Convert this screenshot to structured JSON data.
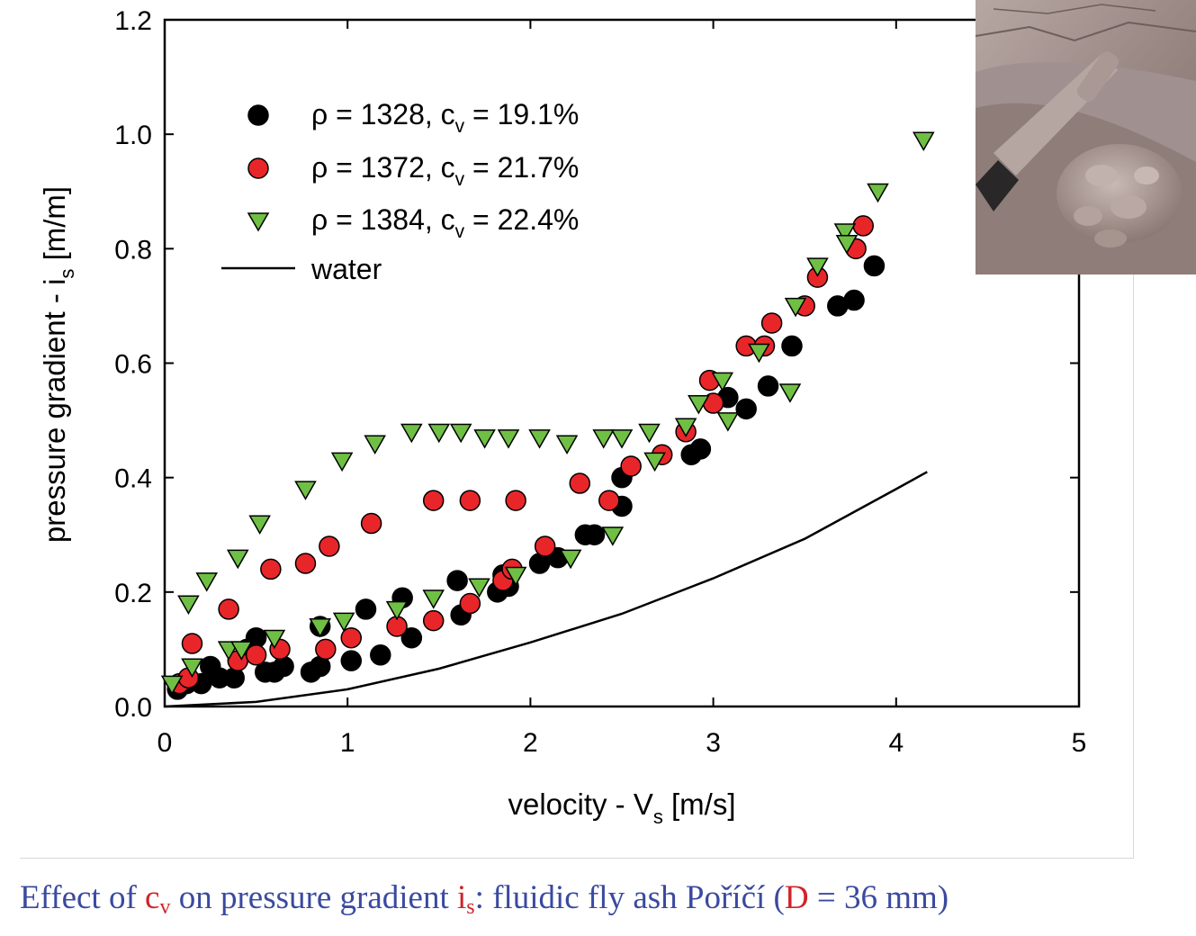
{
  "chart_data": {
    "type": "scatter",
    "xlabel_main": "velocity - V",
    "xlabel_sub": "s",
    "xlabel_unit": " [m/s]",
    "ylabel_main": "pressure gradient - i",
    "ylabel_sub": "s",
    "ylabel_unit": " [m/m]",
    "xlim": [
      0,
      5
    ],
    "ylim": [
      0,
      1.2
    ],
    "xticks": [
      "0",
      "1",
      "2",
      "3",
      "4",
      "5"
    ],
    "yticks": [
      "0.0",
      "0.2",
      "0.4",
      "0.6",
      "0.8",
      "1.0",
      "1.2"
    ],
    "legend_position": "top-left",
    "series": [
      {
        "name_prefix": "ρ = 1328, c",
        "name_sub": "v",
        "name_suffix": " = 19.1%",
        "marker": "circle",
        "color": "#000000",
        "x": [
          0.07,
          0.12,
          0.2,
          0.25,
          0.3,
          0.38,
          0.45,
          0.5,
          0.55,
          0.6,
          0.65,
          0.8,
          0.85,
          0.85,
          1.02,
          1.1,
          1.18,
          1.3,
          1.35,
          1.6,
          1.62,
          1.82,
          1.85,
          1.88,
          2.05,
          2.15,
          2.3,
          2.35,
          2.5,
          2.5,
          2.88,
          2.93,
          3.08,
          3.18,
          3.3,
          3.43,
          3.68,
          3.77,
          3.88
        ],
        "y": [
          0.03,
          0.04,
          0.04,
          0.07,
          0.05,
          0.05,
          0.1,
          0.12,
          0.06,
          0.06,
          0.07,
          0.06,
          0.07,
          0.14,
          0.08,
          0.17,
          0.09,
          0.19,
          0.12,
          0.22,
          0.16,
          0.2,
          0.23,
          0.21,
          0.25,
          0.26,
          0.3,
          0.3,
          0.35,
          0.4,
          0.44,
          0.45,
          0.54,
          0.52,
          0.56,
          0.63,
          0.7,
          0.71,
          0.77
        ]
      },
      {
        "name_prefix": "ρ = 1372, c",
        "name_sub": "v",
        "name_suffix": " = 21.7%",
        "marker": "circle",
        "color": "#e8262a",
        "x": [
          0.08,
          0.13,
          0.15,
          0.35,
          0.4,
          0.5,
          0.58,
          0.63,
          0.77,
          0.88,
          0.9,
          1.02,
          1.13,
          1.27,
          1.47,
          1.47,
          1.67,
          1.67,
          1.85,
          1.9,
          1.92,
          2.08,
          2.27,
          2.43,
          2.55,
          2.72,
          2.85,
          2.98,
          3.0,
          3.18,
          3.28,
          3.32,
          3.5,
          3.57,
          3.78,
          3.82
        ],
        "y": [
          0.04,
          0.05,
          0.11,
          0.17,
          0.08,
          0.09,
          0.24,
          0.1,
          0.25,
          0.1,
          0.28,
          0.12,
          0.32,
          0.14,
          0.15,
          0.36,
          0.18,
          0.36,
          0.22,
          0.24,
          0.36,
          0.28,
          0.39,
          0.36,
          0.42,
          0.44,
          0.48,
          0.57,
          0.53,
          0.63,
          0.63,
          0.67,
          0.7,
          0.75,
          0.8,
          0.84
        ]
      },
      {
        "name_prefix": "ρ = 1384, c",
        "name_sub": "v",
        "name_suffix": " = 22.4%",
        "marker": "triangle-down",
        "color": "#6fbf44",
        "x": [
          0.04,
          0.13,
          0.15,
          0.23,
          0.35,
          0.4,
          0.42,
          0.52,
          0.6,
          0.77,
          0.85,
          0.97,
          0.98,
          1.15,
          1.27,
          1.35,
          1.47,
          1.5,
          1.62,
          1.72,
          1.75,
          1.88,
          1.92,
          2.05,
          2.2,
          2.22,
          2.4,
          2.45,
          2.5,
          2.65,
          2.68,
          2.85,
          2.92,
          3.05,
          3.08,
          3.25,
          3.42,
          3.45,
          3.57,
          3.72,
          3.73,
          3.9,
          4.15
        ],
        "y": [
          0.04,
          0.18,
          0.07,
          0.22,
          0.1,
          0.26,
          0.1,
          0.32,
          0.12,
          0.38,
          0.14,
          0.43,
          0.15,
          0.46,
          0.17,
          0.48,
          0.19,
          0.48,
          0.48,
          0.21,
          0.47,
          0.47,
          0.23,
          0.47,
          0.46,
          0.26,
          0.47,
          0.3,
          0.47,
          0.48,
          0.43,
          0.49,
          0.53,
          0.57,
          0.5,
          0.62,
          0.55,
          0.7,
          0.77,
          0.83,
          0.81,
          0.9,
          0.99
        ]
      }
    ],
    "water_line": {
      "name": "water",
      "x": [
        0,
        0.5,
        1,
        1.5,
        2,
        2.5,
        3,
        3.5,
        4,
        4.17
      ],
      "y": [
        0,
        0.008,
        0.03,
        0.066,
        0.112,
        0.162,
        0.224,
        0.293,
        0.38,
        0.41
      ]
    }
  },
  "caption": {
    "part1": "Effect of ",
    "cv_main": "c",
    "cv_sub": "v",
    "part2": " on pressure gradient ",
    "is_main": "i",
    "is_sub": "s",
    "part3": ": fluidic fly ash Poříčí (",
    "d_label": "D",
    "part4": " = 36 mm)"
  }
}
